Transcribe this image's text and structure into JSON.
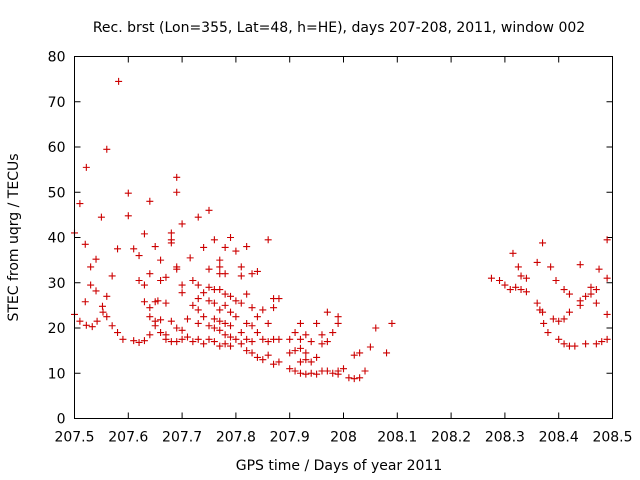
{
  "chart_data": {
    "type": "scatter",
    "title": "Rec. brst (Lon=355, Lat=48, h=HE), days 207-208, 2011, window 002",
    "xlabel": "GPS time / Days of year 2011",
    "ylabel": "STEC from uqrg / TECUs",
    "xlim": [
      207.5,
      208.5
    ],
    "ylim": [
      0,
      80
    ],
    "xticks": [
      207.5,
      207.6,
      207.7,
      207.8,
      207.9,
      208.0,
      208.1,
      208.2,
      208.3,
      208.4,
      208.5
    ],
    "xtick_labels": [
      "207.5",
      "207.6",
      "207.7",
      "207.8",
      "207.9",
      "208",
      "208.1",
      "208.2",
      "208.3",
      "208.4",
      "208.5"
    ],
    "yticks": [
      0,
      10,
      20,
      30,
      40,
      50,
      60,
      70,
      80
    ],
    "ytick_labels": [
      "0",
      "10",
      "20",
      "30",
      "40",
      "50",
      "60",
      "70",
      "80"
    ],
    "grid": false,
    "marker": "+",
    "color": "#cc0000",
    "series": [
      {
        "name": "STEC",
        "points": [
          [
            207.5,
            41.0
          ],
          [
            207.5,
            23.0
          ],
          [
            207.51,
            47.5
          ],
          [
            207.51,
            21.5
          ],
          [
            207.52,
            38.5
          ],
          [
            207.52,
            25.8
          ],
          [
            207.522,
            55.5
          ],
          [
            207.522,
            20.6
          ],
          [
            207.53,
            33.5
          ],
          [
            207.53,
            29.5
          ],
          [
            207.533,
            20.3
          ],
          [
            207.54,
            35.2
          ],
          [
            207.54,
            28.2
          ],
          [
            207.542,
            21.5
          ],
          [
            207.55,
            44.5
          ],
          [
            207.552,
            24.8
          ],
          [
            207.553,
            23.5
          ],
          [
            207.56,
            59.5
          ],
          [
            207.56,
            27.0
          ],
          [
            207.56,
            22.5
          ],
          [
            207.57,
            31.5
          ],
          [
            207.57,
            20.5
          ],
          [
            207.58,
            37.5
          ],
          [
            207.58,
            19.0
          ],
          [
            207.582,
            74.5
          ],
          [
            207.59,
            17.5
          ],
          [
            207.6,
            49.8
          ],
          [
            207.6,
            44.8
          ],
          [
            207.61,
            37.5
          ],
          [
            207.61,
            17.2
          ],
          [
            207.62,
            36.0
          ],
          [
            207.62,
            30.5
          ],
          [
            207.62,
            16.8
          ],
          [
            207.63,
            40.8
          ],
          [
            207.63,
            29.5
          ],
          [
            207.63,
            25.8
          ],
          [
            207.63,
            17.2
          ],
          [
            207.64,
            48.0
          ],
          [
            207.64,
            32.0
          ],
          [
            207.64,
            24.5
          ],
          [
            207.64,
            22.5
          ],
          [
            207.64,
            18.5
          ],
          [
            207.65,
            38.0
          ],
          [
            207.65,
            25.8
          ],
          [
            207.65,
            21.5
          ],
          [
            207.65,
            20.5
          ],
          [
            207.655,
            26.0
          ],
          [
            207.66,
            35.0
          ],
          [
            207.66,
            30.5
          ],
          [
            207.66,
            21.8
          ],
          [
            207.66,
            19.0
          ],
          [
            207.67,
            31.2
          ],
          [
            207.67,
            25.5
          ],
          [
            207.67,
            18.5
          ],
          [
            207.67,
            17.5
          ],
          [
            207.68,
            41.0
          ],
          [
            207.68,
            39.5
          ],
          [
            207.68,
            38.8
          ],
          [
            207.68,
            21.5
          ],
          [
            207.68,
            17.0
          ],
          [
            207.69,
            53.3
          ],
          [
            207.69,
            50.0
          ],
          [
            207.69,
            33.5
          ],
          [
            207.69,
            33.0
          ],
          [
            207.69,
            20.0
          ],
          [
            207.69,
            17.0
          ],
          [
            207.7,
            43.0
          ],
          [
            207.7,
            29.5
          ],
          [
            207.7,
            27.8
          ],
          [
            207.7,
            19.5
          ],
          [
            207.7,
            17.5
          ],
          [
            207.71,
            22.0
          ],
          [
            207.71,
            18.0
          ],
          [
            207.715,
            35.5
          ],
          [
            207.72,
            30.5
          ],
          [
            207.72,
            25.0
          ],
          [
            207.72,
            17.0
          ],
          [
            207.73,
            44.5
          ],
          [
            207.73,
            29.5
          ],
          [
            207.73,
            26.5
          ],
          [
            207.73,
            24.0
          ],
          [
            207.73,
            21.0
          ],
          [
            207.73,
            17.5
          ],
          [
            207.74,
            37.8
          ],
          [
            207.74,
            27.8
          ],
          [
            207.74,
            22.5
          ],
          [
            207.74,
            16.5
          ],
          [
            207.75,
            46.0
          ],
          [
            207.75,
            33.0
          ],
          [
            207.75,
            29.0
          ],
          [
            207.75,
            26.0
          ],
          [
            207.75,
            20.5
          ],
          [
            207.75,
            17.5
          ],
          [
            207.76,
            39.5
          ],
          [
            207.76,
            28.5
          ],
          [
            207.76,
            25.5
          ],
          [
            207.76,
            22.0
          ],
          [
            207.76,
            20.0
          ],
          [
            207.76,
            17.0
          ],
          [
            207.77,
            35.0
          ],
          [
            207.77,
            33.5
          ],
          [
            207.77,
            32.0
          ],
          [
            207.77,
            28.5
          ],
          [
            207.77,
            24.0
          ],
          [
            207.77,
            21.5
          ],
          [
            207.77,
            19.5
          ],
          [
            207.77,
            16.0
          ],
          [
            207.78,
            37.8
          ],
          [
            207.78,
            32.0
          ],
          [
            207.78,
            27.5
          ],
          [
            207.78,
            25.0
          ],
          [
            207.78,
            21.0
          ],
          [
            207.78,
            18.5
          ],
          [
            207.78,
            16.5
          ],
          [
            207.79,
            40.0
          ],
          [
            207.79,
            27.0
          ],
          [
            207.79,
            23.5
          ],
          [
            207.79,
            20.5
          ],
          [
            207.79,
            18.0
          ],
          [
            207.79,
            16.0
          ],
          [
            207.8,
            37.0
          ],
          [
            207.8,
            26.0
          ],
          [
            207.8,
            22.5
          ],
          [
            207.8,
            17.5
          ],
          [
            207.81,
            33.5
          ],
          [
            207.81,
            31.5
          ],
          [
            207.81,
            25.5
          ],
          [
            207.81,
            19.0
          ],
          [
            207.81,
            16.5
          ],
          [
            207.82,
            38.0
          ],
          [
            207.82,
            27.5
          ],
          [
            207.82,
            21.0
          ],
          [
            207.82,
            17.5
          ],
          [
            207.82,
            15.0
          ],
          [
            207.83,
            32.0
          ],
          [
            207.83,
            24.5
          ],
          [
            207.83,
            20.5
          ],
          [
            207.83,
            17.0
          ],
          [
            207.83,
            14.5
          ],
          [
            207.84,
            32.5
          ],
          [
            207.84,
            22.5
          ],
          [
            207.84,
            19.0
          ],
          [
            207.84,
            13.5
          ],
          [
            207.85,
            24.0
          ],
          [
            207.85,
            17.5
          ],
          [
            207.85,
            13.0
          ],
          [
            207.86,
            39.5
          ],
          [
            207.86,
            21.0
          ],
          [
            207.86,
            17.0
          ],
          [
            207.86,
            14.0
          ],
          [
            207.87,
            26.5
          ],
          [
            207.87,
            24.5
          ],
          [
            207.87,
            17.5
          ],
          [
            207.87,
            12.0
          ],
          [
            207.88,
            26.5
          ],
          [
            207.88,
            17.5
          ],
          [
            207.88,
            12.5
          ],
          [
            207.9,
            17.5
          ],
          [
            207.9,
            14.5
          ],
          [
            207.9,
            11.0
          ],
          [
            207.91,
            19.0
          ],
          [
            207.91,
            15.0
          ],
          [
            207.91,
            10.5
          ],
          [
            207.92,
            21.0
          ],
          [
            207.92,
            17.5
          ],
          [
            207.92,
            15.5
          ],
          [
            207.92,
            12.5
          ],
          [
            207.92,
            10.0
          ],
          [
            207.93,
            18.5
          ],
          [
            207.93,
            14.5
          ],
          [
            207.93,
            13.0
          ],
          [
            207.93,
            9.8
          ],
          [
            207.94,
            17.0
          ],
          [
            207.94,
            12.5
          ],
          [
            207.94,
            10.0
          ],
          [
            207.95,
            21.0
          ],
          [
            207.95,
            13.5
          ],
          [
            207.95,
            9.8
          ],
          [
            207.96,
            18.5
          ],
          [
            207.96,
            16.5
          ],
          [
            207.96,
            10.5
          ],
          [
            207.97,
            23.5
          ],
          [
            207.97,
            17.0
          ],
          [
            207.97,
            10.5
          ],
          [
            207.98,
            19.0
          ],
          [
            207.98,
            10.0
          ],
          [
            207.99,
            21.0
          ],
          [
            207.99,
            22.5
          ],
          [
            207.99,
            10.5
          ],
          [
            207.99,
            9.8
          ],
          [
            208.0,
            11.0
          ],
          [
            208.01,
            9.0
          ],
          [
            208.02,
            14.0
          ],
          [
            208.02,
            8.8
          ],
          [
            208.03,
            14.5
          ],
          [
            208.03,
            9.0
          ],
          [
            208.04,
            10.5
          ],
          [
            208.05,
            15.8
          ],
          [
            208.06,
            20.0
          ],
          [
            208.08,
            14.5
          ],
          [
            208.09,
            21.0
          ],
          [
            208.275,
            31.0
          ],
          [
            208.29,
            30.5
          ],
          [
            208.3,
            29.5
          ],
          [
            208.31,
            28.5
          ],
          [
            208.315,
            36.5
          ],
          [
            208.32,
            29.0
          ],
          [
            208.325,
            33.5
          ],
          [
            208.33,
            31.5
          ],
          [
            208.33,
            28.5
          ],
          [
            208.34,
            31.0
          ],
          [
            208.34,
            28.0
          ],
          [
            208.36,
            34.5
          ],
          [
            208.36,
            25.5
          ],
          [
            208.365,
            24.0
          ],
          [
            208.37,
            38.8
          ],
          [
            208.37,
            23.5
          ],
          [
            208.372,
            21.0
          ],
          [
            208.38,
            19.0
          ],
          [
            208.385,
            33.5
          ],
          [
            208.39,
            22.0
          ],
          [
            208.395,
            30.5
          ],
          [
            208.4,
            17.5
          ],
          [
            208.4,
            21.5
          ],
          [
            208.41,
            28.5
          ],
          [
            208.41,
            16.5
          ],
          [
            208.41,
            22.0
          ],
          [
            208.42,
            16.0
          ],
          [
            208.42,
            27.5
          ],
          [
            208.42,
            23.5
          ],
          [
            208.43,
            16.0
          ],
          [
            208.44,
            34.0
          ],
          [
            208.44,
            26.0
          ],
          [
            208.44,
            25.0
          ],
          [
            208.45,
            16.5
          ],
          [
            208.45,
            27.0
          ],
          [
            208.46,
            29.0
          ],
          [
            208.46,
            27.5
          ],
          [
            208.47,
            16.5
          ],
          [
            208.47,
            25.5
          ],
          [
            208.47,
            28.5
          ],
          [
            208.475,
            33.0
          ],
          [
            208.48,
            17.0
          ],
          [
            208.49,
            39.5
          ],
          [
            208.49,
            31.0
          ],
          [
            208.49,
            23.0
          ],
          [
            208.49,
            17.5
          ]
        ]
      }
    ]
  }
}
